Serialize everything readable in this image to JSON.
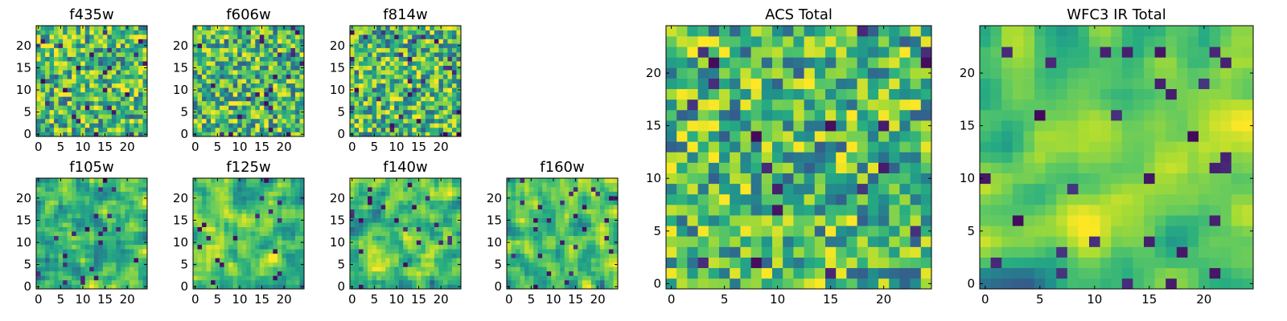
{
  "chart_data": [
    {
      "type": "heatmap",
      "title": "f435w",
      "grid_size": 25,
      "xlim": [
        0,
        24
      ],
      "ylim": [
        0,
        24
      ],
      "xticks": [
        0,
        5,
        10,
        15,
        20
      ],
      "yticks": [
        0,
        5,
        10,
        15,
        20
      ],
      "xtick_labels": [
        "0",
        "5",
        "10",
        "15",
        "20"
      ],
      "ytick_labels": [
        "0",
        "5",
        "10",
        "15",
        "20"
      ],
      "colormap": "viridis",
      "smoothness": 0,
      "seed": 11
    },
    {
      "type": "heatmap",
      "title": "f606w",
      "grid_size": 25,
      "xlim": [
        0,
        24
      ],
      "ylim": [
        0,
        24
      ],
      "xticks": [
        0,
        5,
        10,
        15,
        20
      ],
      "yticks": [
        0,
        5,
        10,
        15,
        20
      ],
      "xtick_labels": [
        "0",
        "5",
        "10",
        "15",
        "20"
      ],
      "ytick_labels": [
        "0",
        "5",
        "10",
        "15",
        "20"
      ],
      "colormap": "viridis",
      "smoothness": 0,
      "seed": 23
    },
    {
      "type": "heatmap",
      "title": "f814w",
      "grid_size": 25,
      "xlim": [
        0,
        24
      ],
      "ylim": [
        0,
        24
      ],
      "xticks": [
        0,
        5,
        10,
        15,
        20
      ],
      "yticks": [
        0,
        5,
        10,
        15,
        20
      ],
      "xtick_labels": [
        "0",
        "5",
        "10",
        "15",
        "20"
      ],
      "ytick_labels": [
        "0",
        "5",
        "10",
        "15",
        "20"
      ],
      "colormap": "viridis",
      "smoothness": 0,
      "seed": 37
    },
    {
      "type": "heatmap",
      "title": "f105w",
      "grid_size": 25,
      "xlim": [
        0,
        24
      ],
      "ylim": [
        0,
        24
      ],
      "xticks": [
        0,
        5,
        10,
        15,
        20
      ],
      "yticks": [
        0,
        5,
        10,
        15,
        20
      ],
      "xtick_labels": [
        "0",
        "5",
        "10",
        "15",
        "20"
      ],
      "ytick_labels": [
        "0",
        "5",
        "10",
        "15",
        "20"
      ],
      "colormap": "viridis",
      "smoothness": 1,
      "seed": 41
    },
    {
      "type": "heatmap",
      "title": "f125w",
      "grid_size": 25,
      "xlim": [
        0,
        24
      ],
      "ylim": [
        0,
        24
      ],
      "xticks": [
        0,
        5,
        10,
        15,
        20
      ],
      "yticks": [
        0,
        5,
        10,
        15,
        20
      ],
      "xtick_labels": [
        "0",
        "5",
        "10",
        "15",
        "20"
      ],
      "ytick_labels": [
        "0",
        "5",
        "10",
        "15",
        "20"
      ],
      "colormap": "viridis",
      "smoothness": 1,
      "seed": 53
    },
    {
      "type": "heatmap",
      "title": "f140w",
      "grid_size": 25,
      "xlim": [
        0,
        24
      ],
      "ylim": [
        0,
        24
      ],
      "xticks": [
        0,
        5,
        10,
        15,
        20
      ],
      "yticks": [
        0,
        5,
        10,
        15,
        20
      ],
      "xtick_labels": [
        "0",
        "5",
        "10",
        "15",
        "20"
      ],
      "ytick_labels": [
        "0",
        "5",
        "10",
        "15",
        "20"
      ],
      "colormap": "viridis",
      "smoothness": 1,
      "seed": 67
    },
    {
      "type": "heatmap",
      "title": "f160w",
      "grid_size": 25,
      "xlim": [
        0,
        24
      ],
      "ylim": [
        0,
        24
      ],
      "xticks": [
        0,
        5,
        10,
        15,
        20
      ],
      "yticks": [
        0,
        5,
        10,
        15,
        20
      ],
      "xtick_labels": [
        "0",
        "5",
        "10",
        "15",
        "20"
      ],
      "ytick_labels": [
        "0",
        "5",
        "10",
        "15",
        "20"
      ],
      "colormap": "viridis",
      "smoothness": 1,
      "seed": 79
    },
    {
      "type": "heatmap",
      "title": "ACS Total",
      "grid_size": 25,
      "xlim": [
        0,
        24
      ],
      "ylim": [
        0,
        24
      ],
      "xticks": [
        0,
        5,
        10,
        15,
        20
      ],
      "yticks": [
        0,
        5,
        10,
        15,
        20
      ],
      "xtick_labels": [
        "0",
        "5",
        "10",
        "15",
        "20"
      ],
      "ytick_labels": [
        "0",
        "5",
        "10",
        "15",
        "20"
      ],
      "colormap": "viridis",
      "smoothness": 0,
      "seed": 83
    },
    {
      "type": "heatmap",
      "title": "WFC3 IR Total",
      "grid_size": 25,
      "xlim": [
        0,
        24
      ],
      "ylim": [
        0,
        24
      ],
      "xticks": [
        0,
        5,
        10,
        15,
        20
      ],
      "yticks": [
        0,
        5,
        10,
        15,
        20
      ],
      "xtick_labels": [
        "0",
        "5",
        "10",
        "15",
        "20"
      ],
      "ytick_labels": [
        "0",
        "5",
        "10",
        "15",
        "20"
      ],
      "colormap": "viridis",
      "smoothness": 2,
      "seed": 97
    }
  ]
}
